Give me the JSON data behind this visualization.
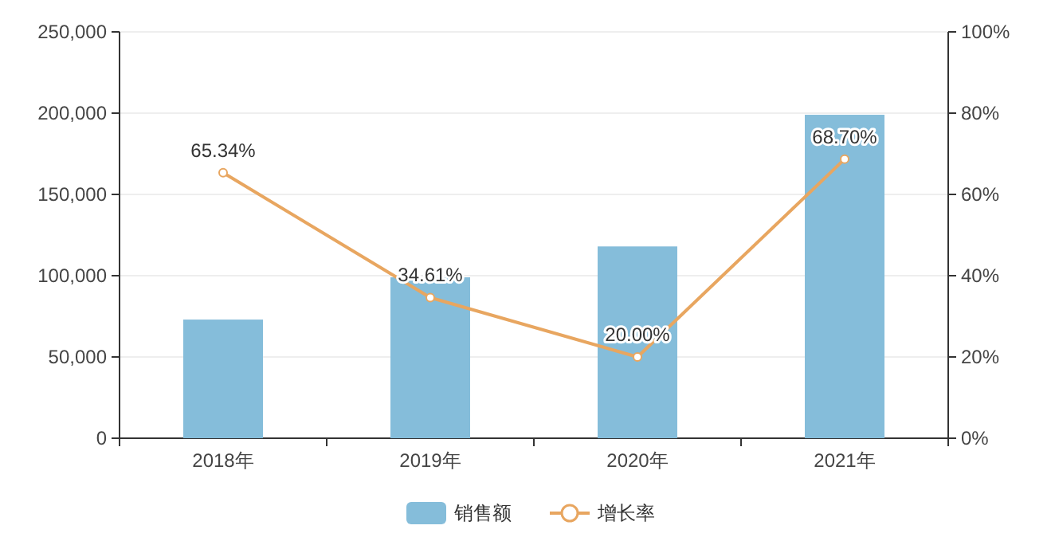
{
  "chart_data": {
    "type": "bar",
    "categories": [
      "2018年",
      "2019年",
      "2020年",
      "2021年"
    ],
    "series": [
      {
        "name": "销售额",
        "color": "#85bdda",
        "values": [
          73000,
          99000,
          118000,
          199000
        ]
      },
      {
        "name": "增长率",
        "type": "line",
        "axis": "y2",
        "color": "#e8a660",
        "marker": "circle",
        "values": [
          65.34,
          34.61,
          20.0,
          68.7
        ],
        "value_labels": [
          "65.34%",
          "34.61%",
          "20.00%",
          "68.70%"
        ]
      }
    ],
    "ylim": [
      0,
      250000
    ],
    "yticks": [
      {
        "value": 0,
        "label": "0"
      },
      {
        "value": 50000,
        "label": "50,000"
      },
      {
        "value": 100000,
        "label": "100,000"
      },
      {
        "value": 150000,
        "label": "150,000"
      },
      {
        "value": 200000,
        "label": "200,000"
      },
      {
        "value": 250000,
        "label": "250,000"
      }
    ],
    "y2lim": [
      0,
      100
    ],
    "y2ticks": [
      {
        "value": 0,
        "label": "0%"
      },
      {
        "value": 20,
        "label": "20%"
      },
      {
        "value": 40,
        "label": "40%"
      },
      {
        "value": 60,
        "label": "60%"
      },
      {
        "value": 80,
        "label": "80%"
      },
      {
        "value": 100,
        "label": "100%"
      }
    ],
    "grid": "y",
    "legend": "bottom"
  }
}
